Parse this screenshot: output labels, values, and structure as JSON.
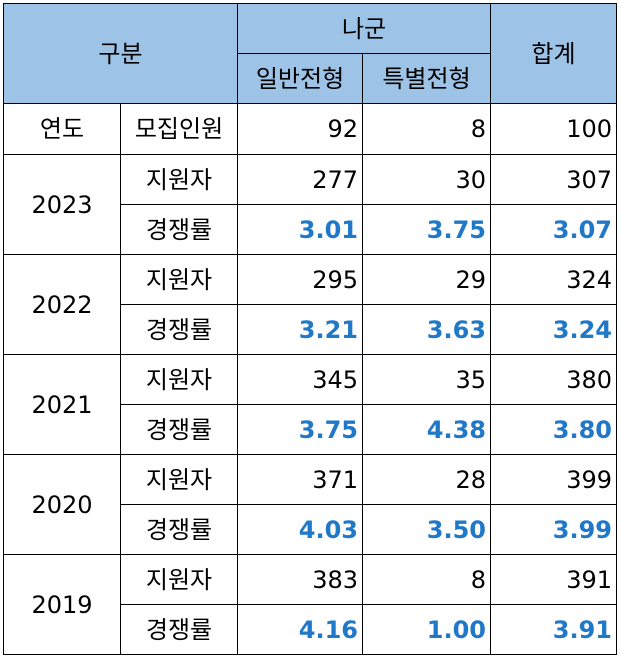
{
  "header": {
    "category": "구분",
    "group": "나군",
    "general": "일반전형",
    "special": "특별전형",
    "total": "합계"
  },
  "quota_row": {
    "col1": "연도",
    "col2": "모집인원",
    "general": "92",
    "special": "8",
    "total": "100"
  },
  "labels": {
    "applicants": "지원자",
    "rate": "경쟁률"
  },
  "years": [
    {
      "year": "2023",
      "applicants": {
        "general": "277",
        "special": "30",
        "total": "307"
      },
      "rate": {
        "general": "3.01",
        "special": "3.75",
        "total": "3.07"
      }
    },
    {
      "year": "2022",
      "applicants": {
        "general": "295",
        "special": "29",
        "total": "324"
      },
      "rate": {
        "general": "3.21",
        "special": "3.63",
        "total": "3.24"
      }
    },
    {
      "year": "2021",
      "applicants": {
        "general": "345",
        "special": "35",
        "total": "380"
      },
      "rate": {
        "general": "3.75",
        "special": "4.38",
        "total": "3.80"
      }
    },
    {
      "year": "2020",
      "applicants": {
        "general": "371",
        "special": "28",
        "total": "399"
      },
      "rate": {
        "general": "4.03",
        "special": "3.50",
        "total": "3.99"
      }
    },
    {
      "year": "2019",
      "applicants": {
        "general": "383",
        "special": "8",
        "total": "391"
      },
      "rate": {
        "general": "4.16",
        "special": "1.00",
        "total": "3.91"
      }
    }
  ],
  "colors": {
    "header_bg": "#9dc3e6",
    "rate_text": "#1f78c8",
    "border": "#000000"
  }
}
